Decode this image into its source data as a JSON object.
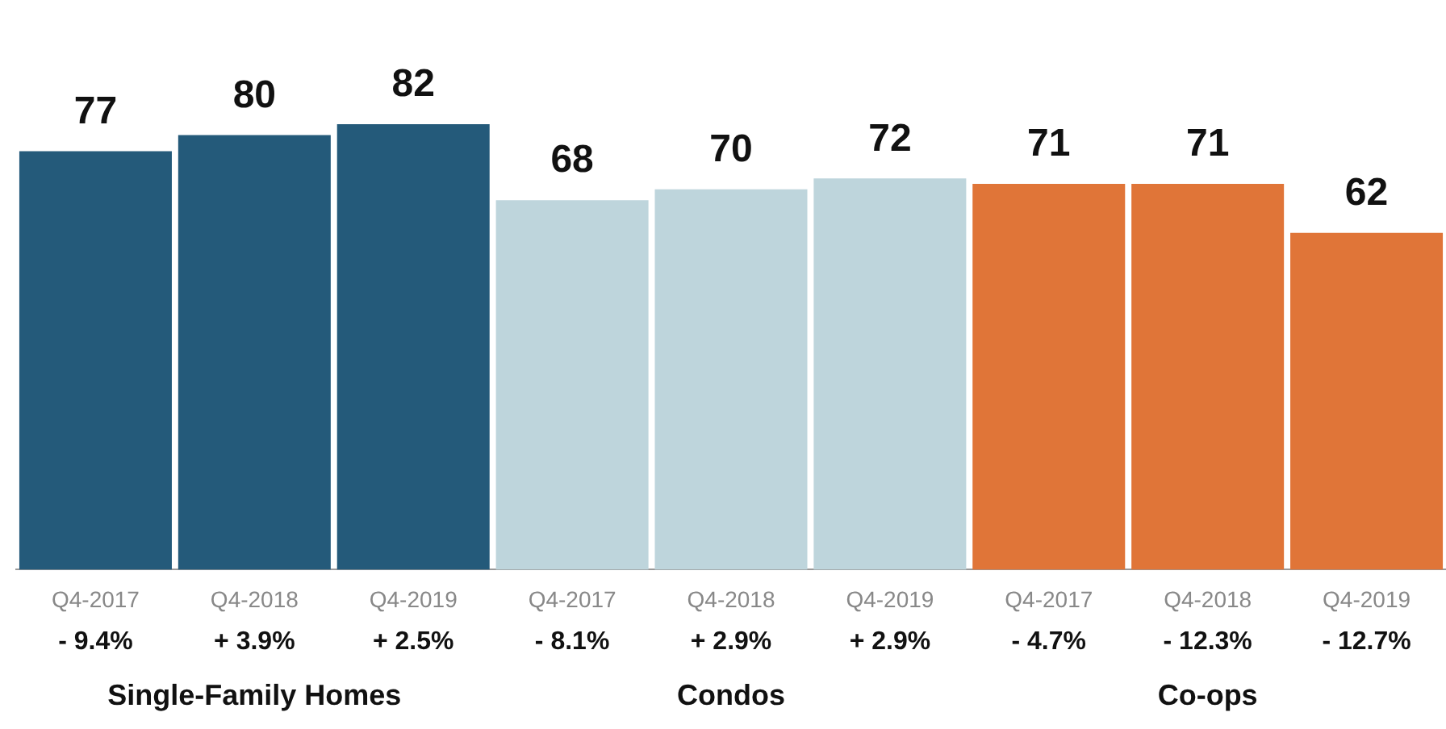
{
  "chart_data": {
    "type": "bar",
    "categories": [
      "Q4-2017",
      "Q4-2018",
      "Q4-2019",
      "Q4-2017",
      "Q4-2018",
      "Q4-2019",
      "Q4-2017",
      "Q4-2018",
      "Q4-2019"
    ],
    "values": [
      77,
      80,
      82,
      68,
      70,
      72,
      71,
      71,
      62
    ],
    "colors": [
      "#245a7a",
      "#245a7a",
      "#245a7a",
      "#bed5dc",
      "#bed5dc",
      "#bed5dc",
      "#e07538",
      "#e07538",
      "#e07538"
    ],
    "data_labels": true,
    "annotations": [
      "- 9.4%",
      "+ 3.9%",
      "+ 2.5%",
      "- 8.1%",
      "+ 2.9%",
      "+ 2.9%",
      "- 4.7%",
      "- 12.3%",
      "- 12.7%",
      "Single-Family Homes",
      "Condos",
      "Co-ops"
    ],
    "grid": false,
    "legend": false
  }
}
